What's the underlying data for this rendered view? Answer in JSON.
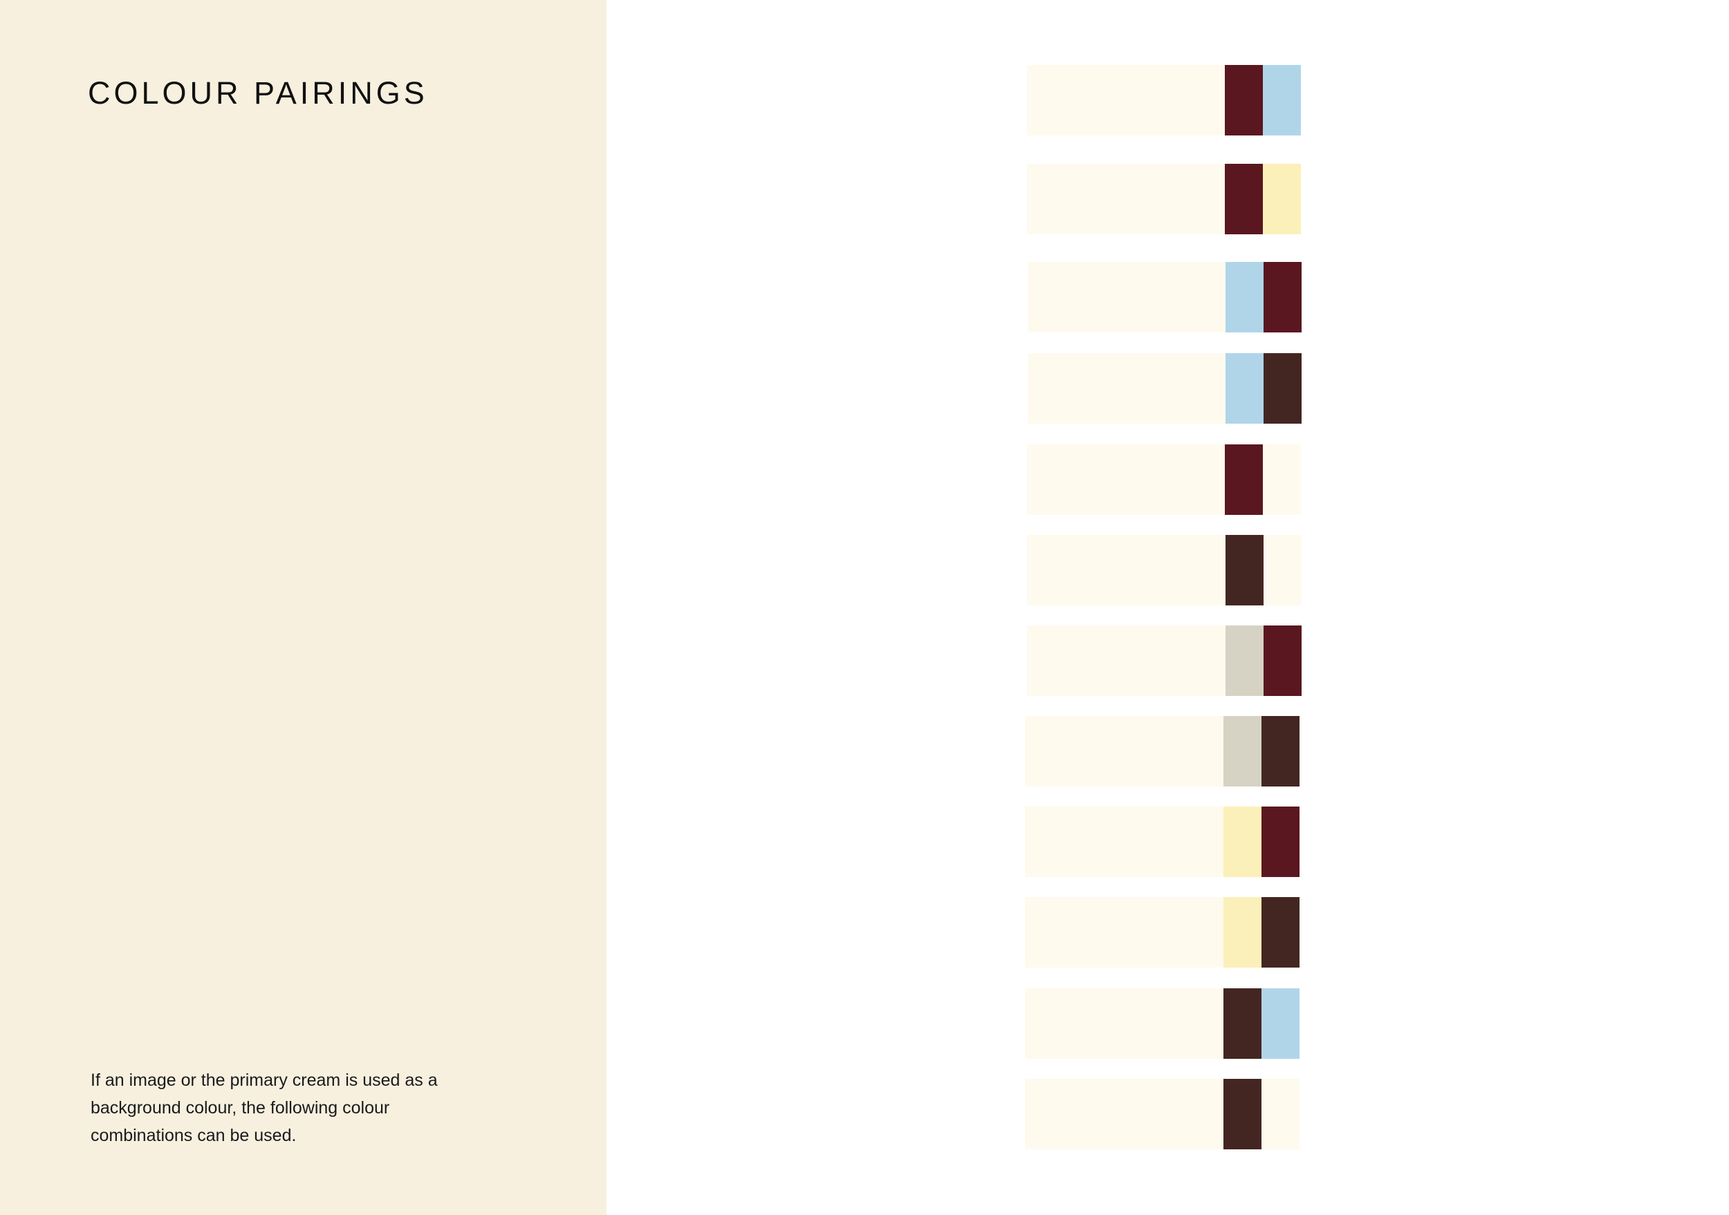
{
  "page": {
    "title": "COLOUR PAIRINGS",
    "description_lines": [
      "If an image or the primary cream is used as a",
      "background colour, the following colour",
      "combinations can be used."
    ]
  },
  "colors": {
    "panel_cream": "#F7F0DF",
    "primary_cream": "#FEFAEE",
    "burgundy": "#5A1720",
    "light_blue": "#B0D5E9",
    "pale_yellow": "#FBF0B9",
    "dark_brown": "#432621",
    "warm_grey": "#D6D3C4"
  },
  "pairings": [
    {
      "swatch_1": "burgundy",
      "swatch_2": "light_blue"
    },
    {
      "swatch_1": "burgundy",
      "swatch_2": "pale_yellow"
    },
    {
      "swatch_1": "light_blue",
      "swatch_2": "burgundy"
    },
    {
      "swatch_1": "light_blue",
      "swatch_2": "dark_brown"
    },
    {
      "swatch_1": "burgundy",
      "swatch_2": "primary_cream"
    },
    {
      "swatch_1": "dark_brown",
      "swatch_2": "primary_cream"
    },
    {
      "swatch_1": "warm_grey",
      "swatch_2": "burgundy"
    },
    {
      "swatch_1": "warm_grey",
      "swatch_2": "dark_brown"
    },
    {
      "swatch_1": "pale_yellow",
      "swatch_2": "burgundy"
    },
    {
      "swatch_1": "pale_yellow",
      "swatch_2": "dark_brown"
    },
    {
      "swatch_1": "dark_brown",
      "swatch_2": "light_blue"
    },
    {
      "swatch_1": "dark_brown",
      "swatch_2": "primary_cream"
    }
  ]
}
